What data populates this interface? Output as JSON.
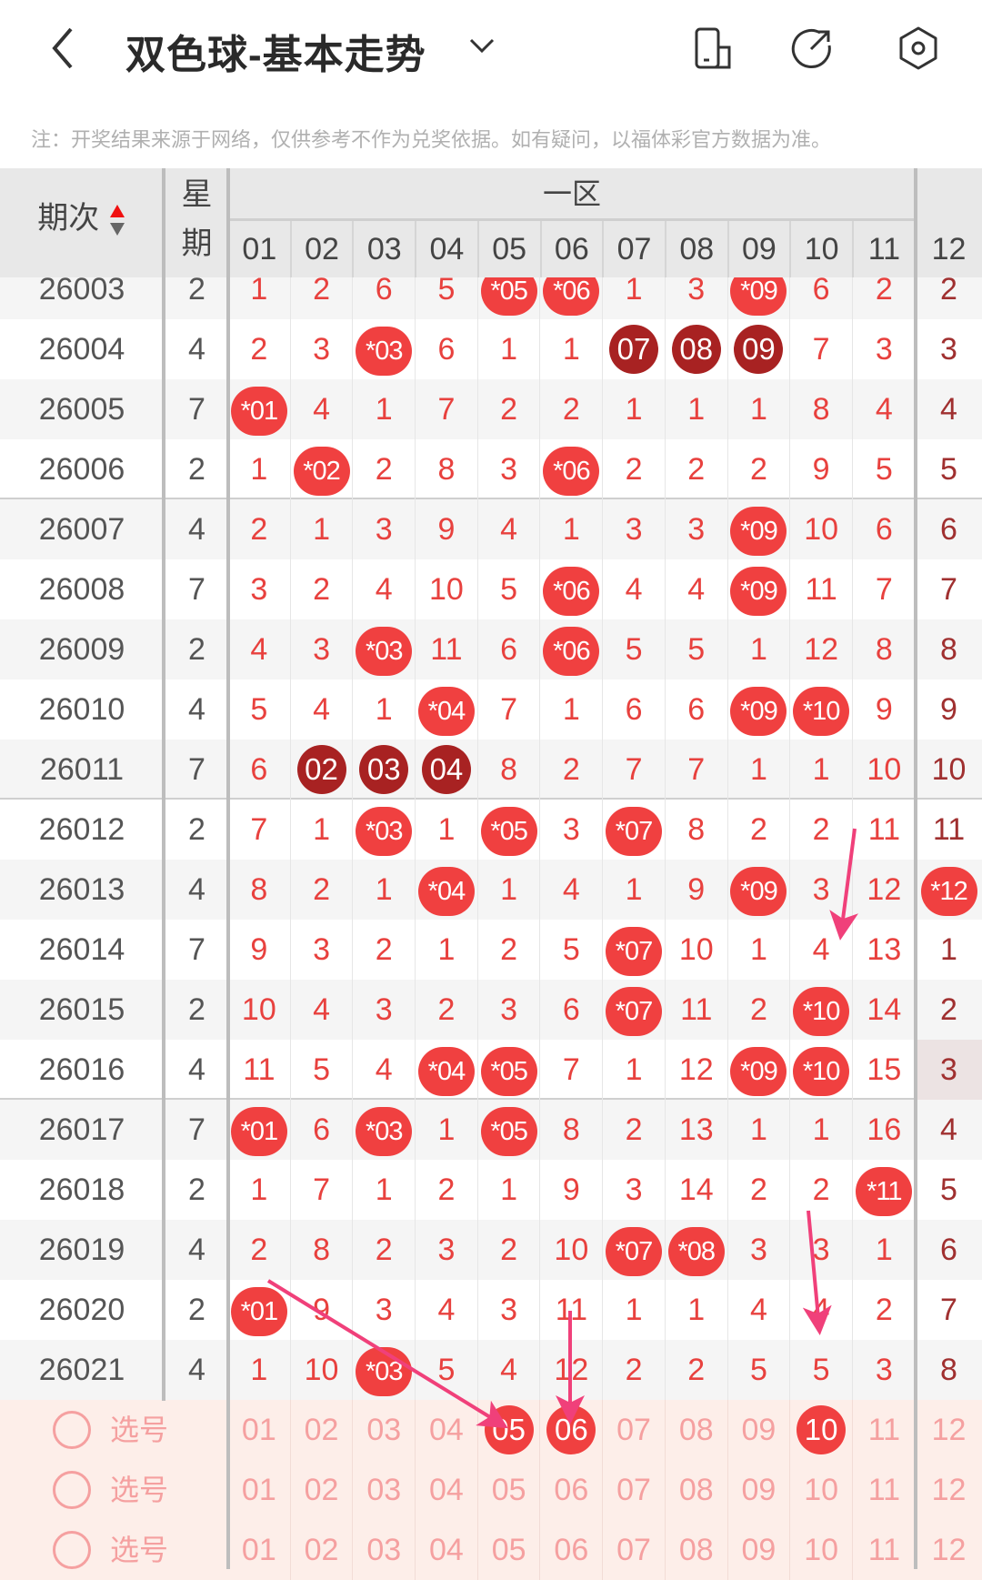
{
  "header": {
    "title": "双色球-基本走势",
    "icons": [
      "back-icon",
      "chevron-down-icon",
      "phone-icon",
      "share-icon",
      "settings-icon"
    ]
  },
  "note": "注：开奖结果来源于网络，仅供参考不作为兑奖依据。如有疑问，以福体彩官方数据为准。",
  "table_header": {
    "issue": "期次",
    "weekday_top": "星",
    "weekday_bottom": "期",
    "zone": "一区",
    "columns": [
      "01",
      "02",
      "03",
      "04",
      "05",
      "06",
      "07",
      "08",
      "09",
      "10",
      "11",
      "12"
    ]
  },
  "colors": {
    "ball": "#f04040",
    "ball_consecutive": "#a82222",
    "text": "#e8413e",
    "arrow": "#f0407a"
  },
  "rows": [
    {
      "issue": "26003",
      "week": "2",
      "cells": [
        "1",
        "2",
        "6",
        "5",
        "*05",
        "*06",
        "1",
        "3",
        "*09",
        "6",
        "2",
        "2"
      ]
    },
    {
      "issue": "26004",
      "week": "4",
      "cells": [
        "2",
        "3",
        "*03",
        "6",
        "1",
        "1",
        "d07",
        "d08",
        "d09",
        "7",
        "3",
        "3"
      ]
    },
    {
      "issue": "26005",
      "week": "7",
      "cells": [
        "*01",
        "4",
        "1",
        "7",
        "2",
        "2",
        "1",
        "1",
        "1",
        "8",
        "4",
        "4"
      ]
    },
    {
      "issue": "26006",
      "week": "2",
      "cells": [
        "1",
        "*02",
        "2",
        "8",
        "3",
        "*06",
        "2",
        "2",
        "2",
        "9",
        "5",
        "5"
      ]
    },
    {
      "issue": "26007",
      "week": "4",
      "cells": [
        "2",
        "1",
        "3",
        "9",
        "4",
        "1",
        "3",
        "3",
        "*09",
        "10",
        "6",
        "6"
      ]
    },
    {
      "issue": "26008",
      "week": "7",
      "cells": [
        "3",
        "2",
        "4",
        "10",
        "5",
        "*06",
        "4",
        "4",
        "*09",
        "11",
        "7",
        "7"
      ]
    },
    {
      "issue": "26009",
      "week": "2",
      "cells": [
        "4",
        "3",
        "*03",
        "11",
        "6",
        "*06",
        "5",
        "5",
        "1",
        "12",
        "8",
        "8"
      ]
    },
    {
      "issue": "26010",
      "week": "4",
      "cells": [
        "5",
        "4",
        "1",
        "*04",
        "7",
        "1",
        "6",
        "6",
        "*09",
        "*10",
        "9",
        "9"
      ]
    },
    {
      "issue": "26011",
      "week": "7",
      "cells": [
        "6",
        "d02",
        "d03",
        "d04",
        "8",
        "2",
        "7",
        "7",
        "1",
        "1",
        "10",
        "10"
      ]
    },
    {
      "issue": "26012",
      "week": "2",
      "cells": [
        "7",
        "1",
        "*03",
        "1",
        "*05",
        "3",
        "*07",
        "8",
        "2",
        "2",
        "11",
        "11"
      ]
    },
    {
      "issue": "26013",
      "week": "4",
      "cells": [
        "8",
        "2",
        "1",
        "*04",
        "1",
        "4",
        "1",
        "9",
        "*09",
        "3",
        "12",
        "*12"
      ]
    },
    {
      "issue": "26014",
      "week": "7",
      "cells": [
        "9",
        "3",
        "2",
        "1",
        "2",
        "5",
        "*07",
        "10",
        "1",
        "4",
        "13",
        "1"
      ]
    },
    {
      "issue": "26015",
      "week": "2",
      "cells": [
        "10",
        "4",
        "3",
        "2",
        "3",
        "6",
        "*07",
        "11",
        "2",
        "*10",
        "14",
        "2"
      ]
    },
    {
      "issue": "26016",
      "week": "4",
      "cells": [
        "11",
        "5",
        "4",
        "*04",
        "*05",
        "7",
        "1",
        "12",
        "*09",
        "*10",
        "15",
        "3"
      ]
    },
    {
      "issue": "26017",
      "week": "7",
      "cells": [
        "*01",
        "6",
        "*03",
        "1",
        "*05",
        "8",
        "2",
        "13",
        "1",
        "1",
        "16",
        "4"
      ]
    },
    {
      "issue": "26018",
      "week": "2",
      "cells": [
        "1",
        "7",
        "1",
        "2",
        "1",
        "9",
        "3",
        "14",
        "2",
        "2",
        "*11",
        "5"
      ]
    },
    {
      "issue": "26019",
      "week": "4",
      "cells": [
        "2",
        "8",
        "2",
        "3",
        "2",
        "10",
        "*07",
        "*08",
        "3",
        "3",
        "1",
        "6"
      ]
    },
    {
      "issue": "26020",
      "week": "2",
      "cells": [
        "*01",
        "9",
        "3",
        "4",
        "3",
        "11",
        "1",
        "1",
        "4",
        "4",
        "2",
        "7"
      ]
    },
    {
      "issue": "26021",
      "week": "4",
      "cells": [
        "1",
        "10",
        "*03",
        "5",
        "4",
        "12",
        "2",
        "2",
        "5",
        "5",
        "3",
        "8"
      ]
    }
  ],
  "pick_rows": [
    {
      "label": "选号",
      "selected": [
        "05",
        "06",
        "10"
      ]
    },
    {
      "label": "选号",
      "selected": []
    },
    {
      "label": "选号",
      "selected": []
    }
  ]
}
